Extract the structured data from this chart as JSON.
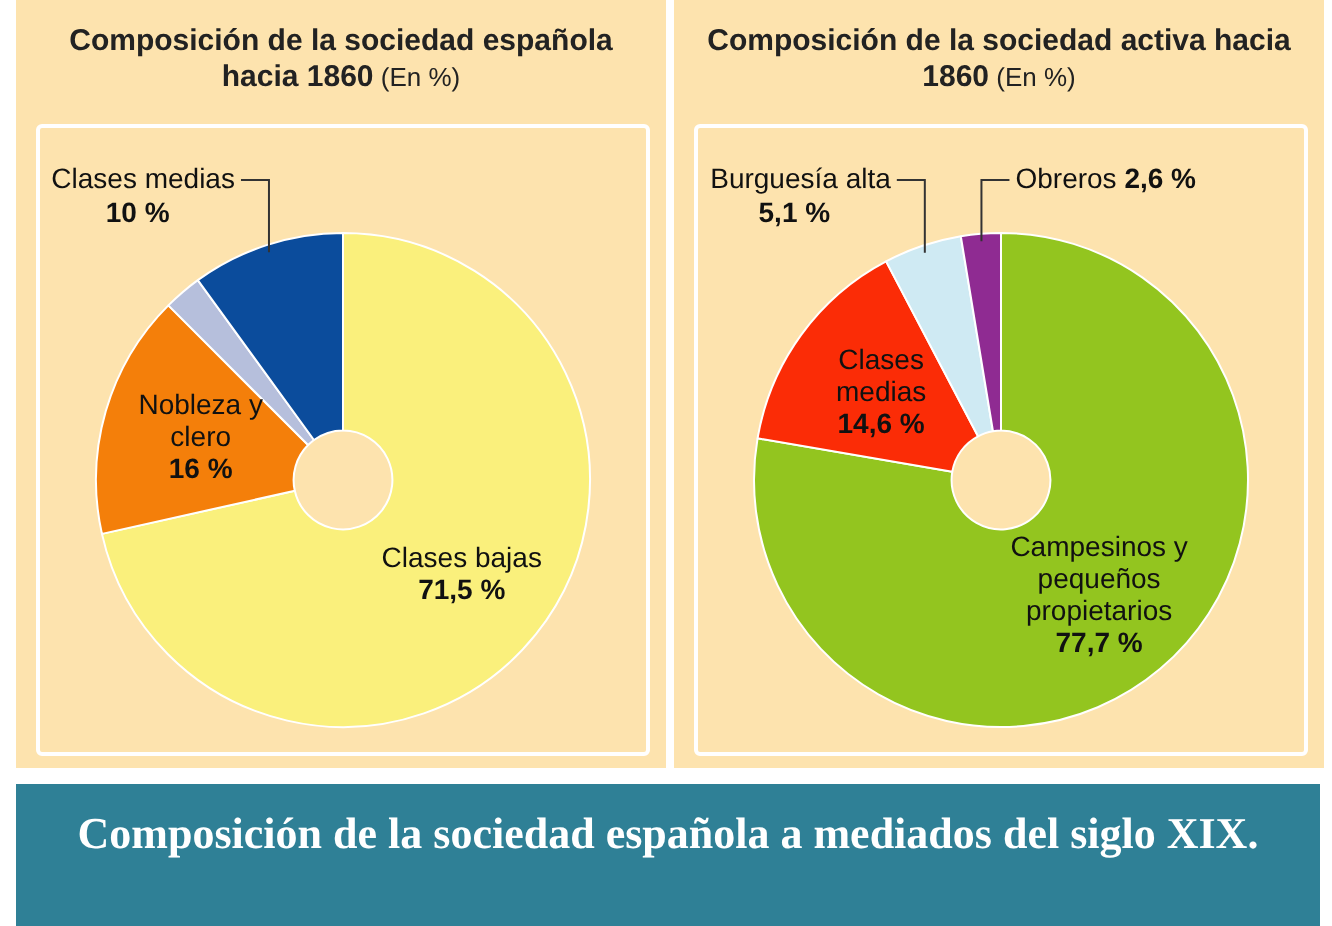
{
  "chart_data": [
    {
      "type": "donut",
      "title": "Composición de la sociedad española hacia 1860",
      "subtitle": "(En %)",
      "categories": [
        "Clases bajas",
        "Nobleza y clero",
        null,
        "Clases medias"
      ],
      "values": [
        71.5,
        16,
        2.5,
        10
      ],
      "colors": [
        "#faf07c",
        "#f47f0a",
        "#b6bfdc",
        "#0b4c9c"
      ],
      "value_labels": [
        "71,5 %",
        "16 %",
        null,
        "10 %"
      ],
      "legend": false
    },
    {
      "type": "donut",
      "title": "Composición de la sociedad activa hacia 1860",
      "subtitle": "(En %)",
      "categories": [
        "Campesinos y pequeños propietarios",
        "Clases medias",
        "Burguesía alta",
        "Obreros"
      ],
      "values": [
        77.7,
        14.6,
        5.1,
        2.6
      ],
      "colors": [
        "#93c51f",
        "#fb2c06",
        "#cfeaf3",
        "#8f2b92"
      ],
      "value_labels": [
        "77,7 %",
        "14,6 %",
        "5,1 %",
        "2,6 %"
      ],
      "legend": false
    },
    {
      "type": "other",
      "title": "Composición de la sociedad española a mediados del siglo XIX."
    }
  ]
}
